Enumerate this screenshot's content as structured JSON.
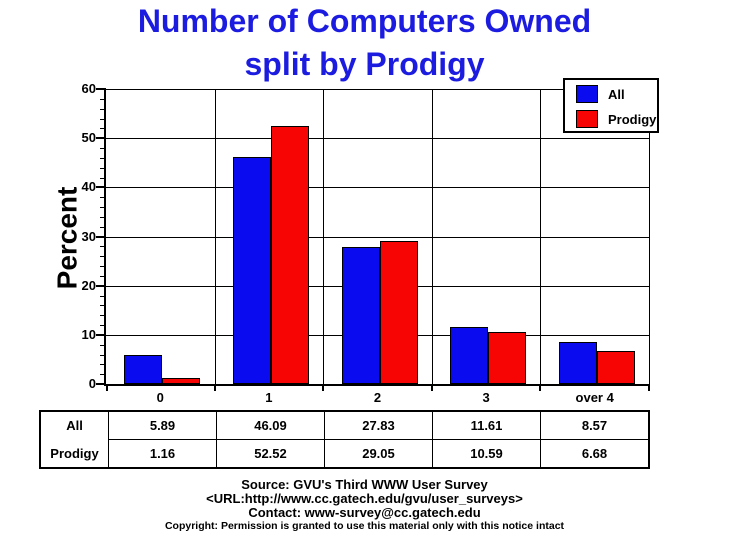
{
  "title": {
    "line1": "Number of Computers Owned",
    "line2": "split by Prodigy"
  },
  "chart_data": {
    "type": "bar",
    "title": "Number of Computers Owned split by Prodigy",
    "categories": [
      "0",
      "1",
      "2",
      "3",
      "over 4"
    ],
    "series": [
      {
        "name": "All",
        "color": "#0b0bf0",
        "values": [
          5.89,
          46.09,
          27.83,
          11.61,
          8.57
        ]
      },
      {
        "name": "Prodigy",
        "color": "#f70505",
        "values": [
          1.16,
          52.52,
          29.05,
          10.59,
          6.68
        ]
      }
    ],
    "xlabel": "",
    "ylabel": "Percent",
    "ylim": [
      0,
      60
    ],
    "yticks": [
      0,
      10,
      20,
      30,
      40,
      50,
      60
    ],
    "ytick_minor": 2,
    "grid": true,
    "legend_position": "top-right"
  },
  "table": {
    "rows": [
      {
        "label": "All",
        "values": [
          "5.89",
          "46.09",
          "27.83",
          "11.61",
          "8.57"
        ]
      },
      {
        "label": "Prodigy",
        "values": [
          "1.16",
          "52.52",
          "29.05",
          "10.59",
          "6.68"
        ]
      }
    ]
  },
  "footer": {
    "source": "Source: GVU's Third WWW User Survey",
    "url": "<URL:http://www.cc.gatech.edu/gvu/user_surveys>",
    "contact": "Contact: www-survey@cc.gatech.edu",
    "copyright": "Copyright: Permission is granted to use this material only with this notice intact"
  },
  "colors": {
    "title": "#1c1ce0",
    "all_series": "#0b0bf0",
    "prodigy_series": "#f70505",
    "axis": "#000000",
    "background": "#ffffff"
  }
}
